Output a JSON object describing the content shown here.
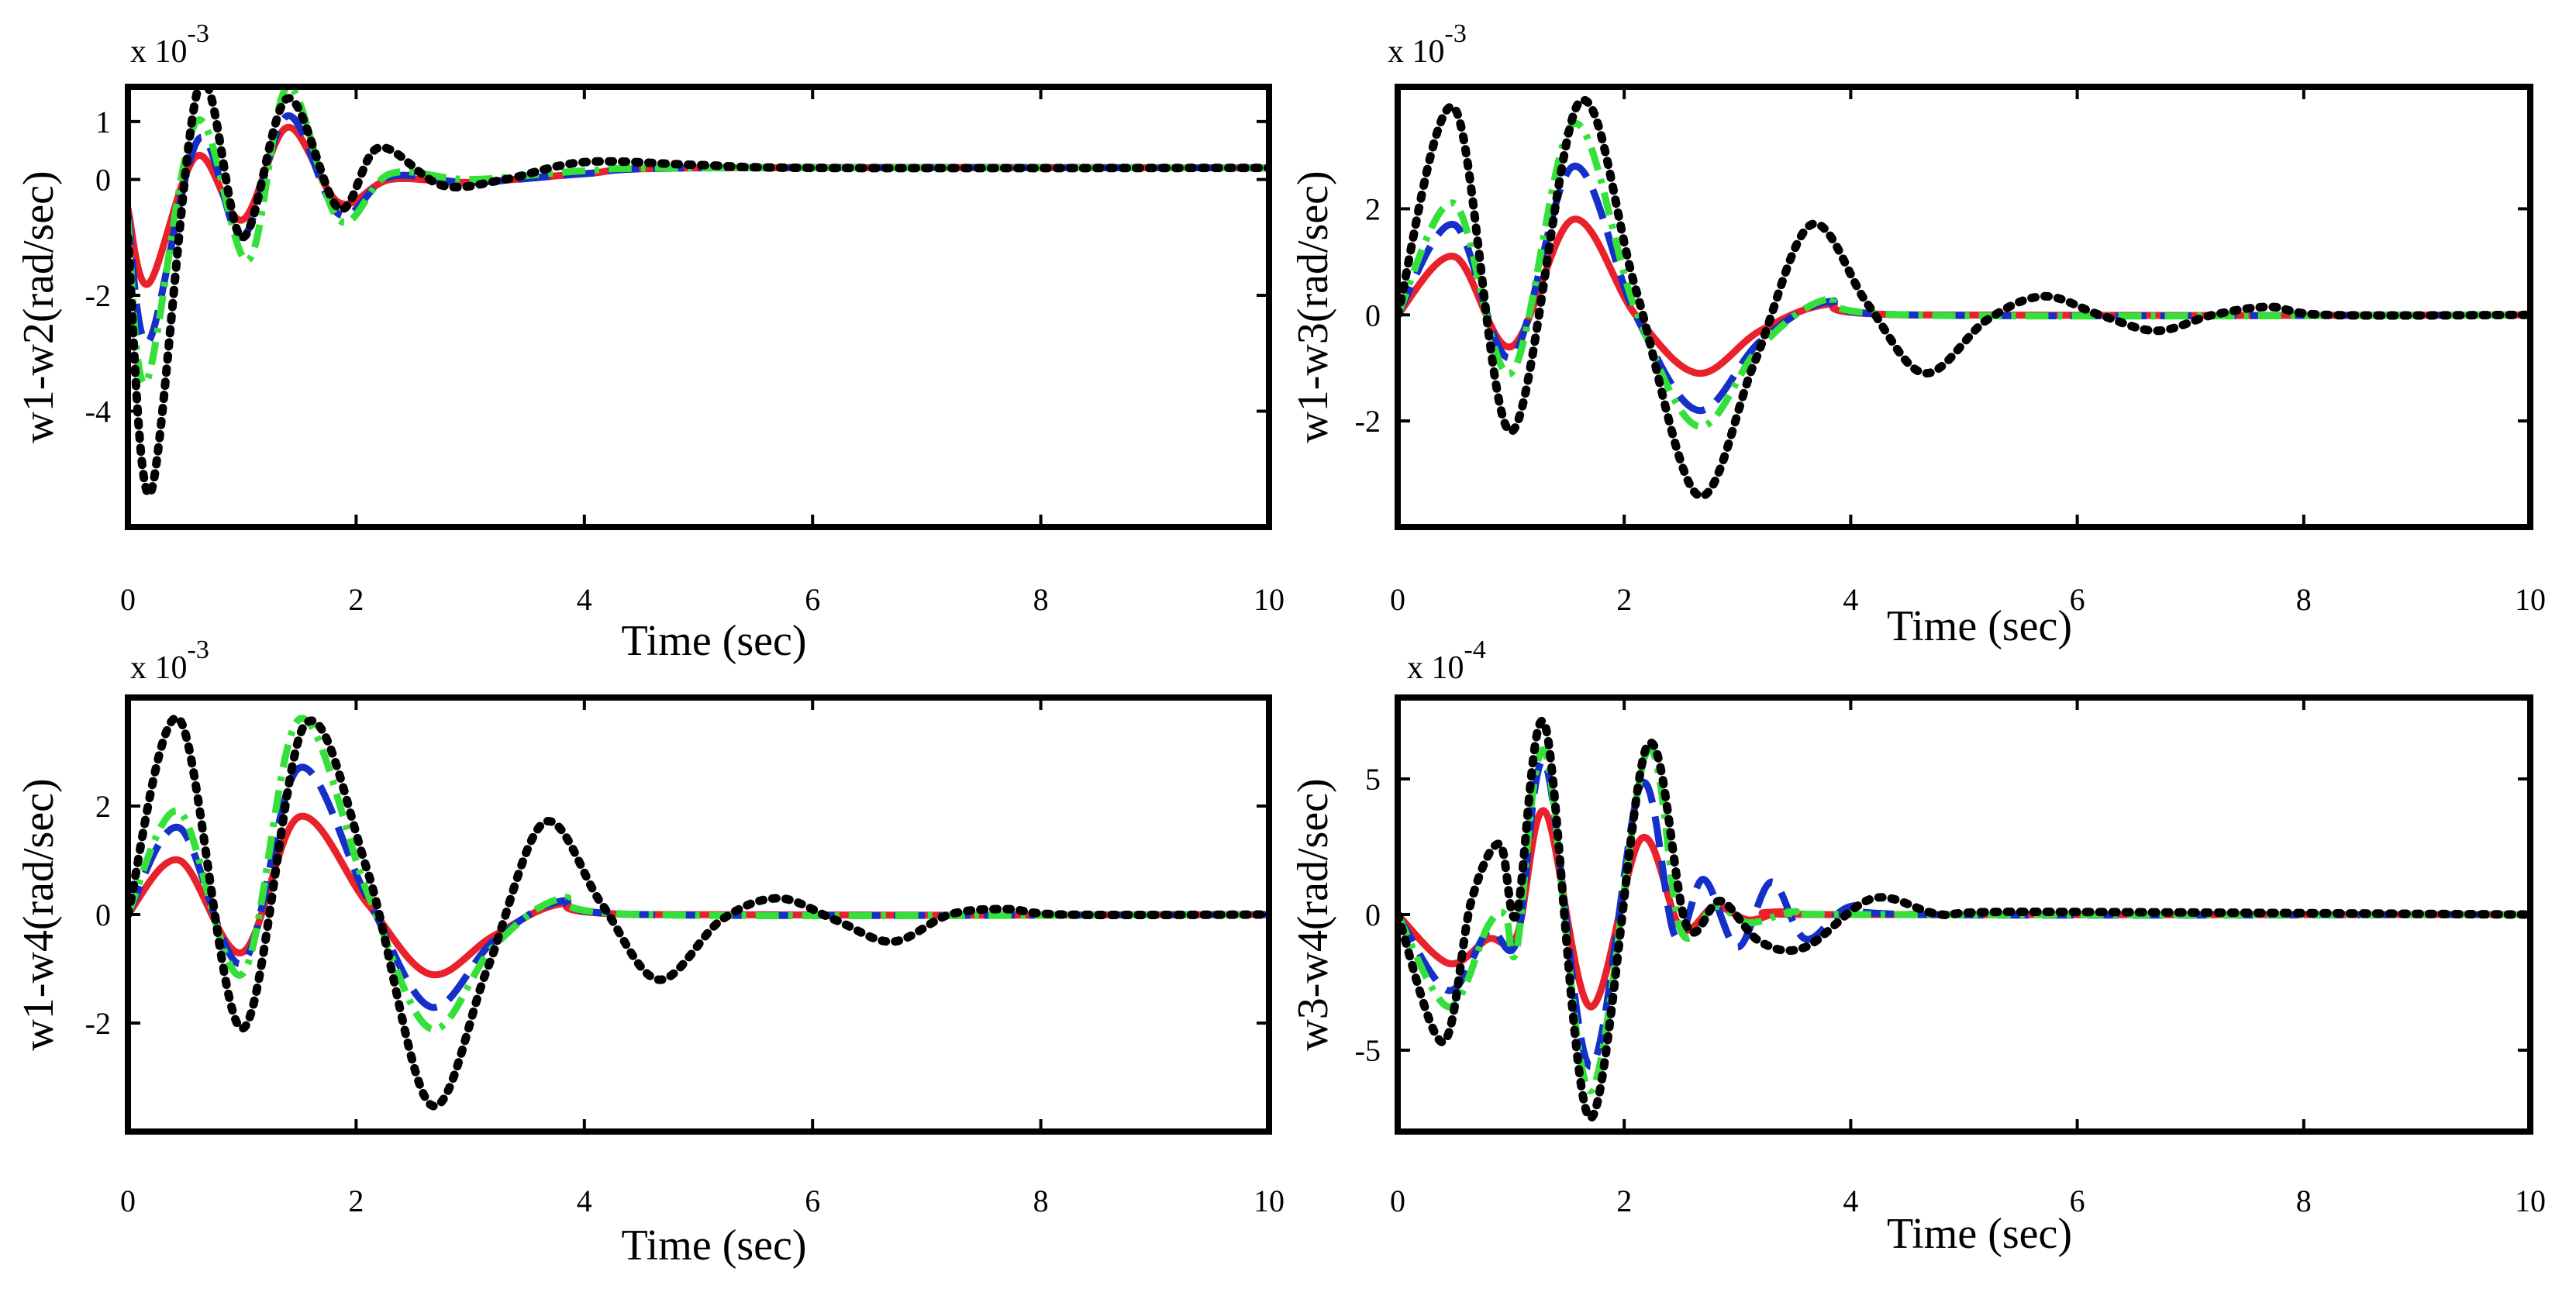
{
  "chart_data": [
    {
      "type": "line",
      "ylabel": "w1-w2(rad/sec)",
      "xlabel": "Time (sec)",
      "exponent_label": "x 10",
      "exponent_power": "-3",
      "xlim": [
        0,
        10
      ],
      "ylim": [
        -6,
        1.6
      ],
      "xticks": [
        "0",
        "2",
        "4",
        "6",
        "8",
        "10"
      ],
      "yticks": [
        {
          "v": 1,
          "label": "1"
        },
        {
          "v": 0,
          "label": "0"
        },
        {
          "v": -2,
          "label": "-2"
        },
        {
          "v": -4,
          "label": "-4"
        }
      ],
      "series": [
        {
          "name": "red",
          "color": "#e8212b",
          "dash": "solid",
          "x": [
            0,
            0.18,
            0.6,
            1.0,
            1.4,
            1.85,
            2.3,
            3.0,
            4.0,
            5.0,
            10
          ],
          "y": [
            -0.5,
            -1.8,
            0.4,
            -0.7,
            0.9,
            -0.4,
            0.0,
            -0.05,
            0.1,
            0.2,
            0.2
          ]
        },
        {
          "name": "blue",
          "color": "#1530c8",
          "dash": "long",
          "x": [
            0,
            0.18,
            0.62,
            1.0,
            1.4,
            1.85,
            2.3,
            3.0,
            4.0,
            5.0,
            10
          ],
          "y": [
            -0.6,
            -2.8,
            0.7,
            -1.0,
            1.1,
            -0.6,
            0.05,
            -0.05,
            0.1,
            0.2,
            0.2
          ]
        },
        {
          "name": "green",
          "color": "#35e03a",
          "dash": "dashdot",
          "x": [
            0,
            0.16,
            0.6,
            1.05,
            1.4,
            1.85,
            2.3,
            3.0,
            4.0,
            5.0,
            10
          ],
          "y": [
            -0.7,
            -3.5,
            1.0,
            -1.4,
            1.6,
            -0.7,
            0.1,
            0.0,
            0.15,
            0.2,
            0.2
          ]
        },
        {
          "name": "black",
          "color": "#000000",
          "dash": "dotted",
          "x": [
            0,
            0.2,
            0.62,
            1.0,
            1.4,
            1.85,
            2.2,
            2.75,
            3.3,
            4.0,
            5.0,
            6.0,
            10
          ],
          "y": [
            -1.0,
            -5.4,
            1.6,
            -1.0,
            1.4,
            -0.5,
            0.55,
            -0.1,
            0.0,
            0.3,
            0.25,
            0.2,
            0.2
          ]
        }
      ]
    },
    {
      "type": "line",
      "ylabel": "w1-w3(rad/sec)",
      "xlabel": "Time (sec)",
      "exponent_label": "x 10",
      "exponent_power": "-3",
      "xlim": [
        0,
        10
      ],
      "ylim": [
        -4,
        4.3
      ],
      "xticks": [
        "0",
        "2",
        "4",
        "6",
        "8",
        "10"
      ],
      "yticks": [
        {
          "v": 2,
          "label": "2"
        },
        {
          "v": 0,
          "label": "0"
        },
        {
          "v": -2,
          "label": "-2"
        }
      ],
      "series": [
        {
          "name": "red",
          "color": "#e8212b",
          "dash": "solid",
          "x": [
            0,
            0.5,
            1.0,
            1.55,
            2.1,
            2.65,
            3.2,
            3.8,
            4.5,
            10
          ],
          "y": [
            0,
            1.1,
            -0.6,
            1.8,
            0.0,
            -1.1,
            -0.3,
            0.2,
            0.0,
            0.0
          ]
        },
        {
          "name": "blue",
          "color": "#1530c8",
          "dash": "long",
          "x": [
            0,
            0.5,
            1.0,
            1.55,
            2.1,
            2.65,
            3.2,
            3.8,
            4.5,
            10
          ],
          "y": [
            0,
            1.7,
            -0.8,
            2.8,
            0.0,
            -1.8,
            -0.5,
            0.25,
            0.0,
            0.0
          ]
        },
        {
          "name": "green",
          "color": "#35e03a",
          "dash": "dashdot",
          "x": [
            0,
            0.5,
            1.0,
            1.55,
            2.1,
            2.65,
            3.2,
            3.8,
            4.5,
            10
          ],
          "y": [
            0,
            2.1,
            -1.1,
            3.6,
            0.1,
            -2.1,
            -0.6,
            0.3,
            0.0,
            0.0
          ]
        },
        {
          "name": "black",
          "color": "#000000",
          "dash": "dotted",
          "x": [
            0,
            0.5,
            1.0,
            1.6,
            2.1,
            2.65,
            3.15,
            3.65,
            4.15,
            4.65,
            5.2,
            5.7,
            6.2,
            6.7,
            7.2,
            7.7,
            8.2,
            10
          ],
          "y": [
            0,
            3.9,
            -2.2,
            4.0,
            0.5,
            -3.4,
            -0.9,
            1.7,
            0.2,
            -1.1,
            -0.1,
            0.35,
            0.0,
            -0.3,
            0.0,
            0.15,
            0.0,
            0.0
          ]
        }
      ]
    },
    {
      "type": "line",
      "ylabel": "w1-w4(rad/sec)",
      "xlabel": "Time (sec)",
      "exponent_label": "x 10",
      "exponent_power": "-3",
      "xlim": [
        0,
        10
      ],
      "ylim": [
        -4,
        4
      ],
      "xticks": [
        "0",
        "2",
        "4",
        "6",
        "8",
        "10"
      ],
      "yticks": [
        {
          "v": 2,
          "label": "2"
        },
        {
          "v": 0,
          "label": "0"
        },
        {
          "v": -2,
          "label": "-2"
        }
      ],
      "series": [
        {
          "name": "red",
          "color": "#e8212b",
          "dash": "solid",
          "x": [
            0,
            0.45,
            1.0,
            1.5,
            2.1,
            2.65,
            3.2,
            3.8,
            4.5,
            10
          ],
          "y": [
            0,
            1.0,
            -0.7,
            1.8,
            0.2,
            -1.1,
            -0.4,
            0.2,
            0.0,
            0.0
          ]
        },
        {
          "name": "blue",
          "color": "#1530c8",
          "dash": "long",
          "x": [
            0,
            0.45,
            1.0,
            1.5,
            2.1,
            2.65,
            3.2,
            3.8,
            4.5,
            10
          ],
          "y": [
            0,
            1.6,
            -0.9,
            2.7,
            0.3,
            -1.7,
            -0.5,
            0.25,
            0.0,
            0.0
          ]
        },
        {
          "name": "green",
          "color": "#35e03a",
          "dash": "dashdot",
          "x": [
            0,
            0.45,
            1.0,
            1.5,
            2.1,
            2.65,
            3.2,
            3.8,
            4.5,
            10
          ],
          "y": [
            0,
            1.9,
            -1.1,
            3.6,
            0.4,
            -2.1,
            -0.6,
            0.3,
            0.0,
            0.0
          ]
        },
        {
          "name": "black",
          "color": "#000000",
          "dash": "dotted",
          "x": [
            0,
            0.45,
            1.0,
            1.55,
            2.1,
            2.65,
            3.15,
            3.65,
            4.15,
            4.65,
            5.2,
            5.7,
            6.2,
            6.7,
            7.2,
            7.7,
            8.2,
            10
          ],
          "y": [
            0,
            3.6,
            -2.1,
            3.5,
            0.8,
            -3.5,
            -1.0,
            1.7,
            0.2,
            -1.2,
            -0.1,
            0.3,
            -0.1,
            -0.5,
            0.0,
            0.1,
            0.0,
            0.0
          ]
        }
      ]
    },
    {
      "type": "line",
      "ylabel": "w3-w4(rad/sec)",
      "xlabel": "Time (sec)",
      "exponent_label": "x 10",
      "exponent_power": "-4",
      "xlim": [
        0,
        10
      ],
      "ylim": [
        -8,
        8
      ],
      "xticks": [
        "0",
        "2",
        "4",
        "6",
        "8",
        "10"
      ],
      "yticks": [
        {
          "v": 5,
          "label": "5"
        },
        {
          "v": 0,
          "label": "0"
        },
        {
          "v": -5,
          "label": "-5"
        }
      ],
      "series": [
        {
          "name": "red",
          "color": "#e8212b",
          "dash": "solid",
          "x": [
            0,
            0.45,
            0.8,
            1.05,
            1.3,
            1.7,
            2.15,
            2.5,
            2.8,
            3.1,
            3.4,
            3.8,
            10
          ],
          "y": [
            0,
            -1.8,
            -0.9,
            -0.8,
            3.8,
            -3.4,
            2.8,
            -0.5,
            0.3,
            -0.2,
            0.1,
            0.0,
            0.0
          ]
        },
        {
          "name": "blue",
          "color": "#1530c8",
          "dash": "long",
          "x": [
            0,
            0.45,
            0.8,
            1.05,
            1.3,
            1.7,
            2.15,
            2.45,
            2.7,
            3.0,
            3.3,
            3.6,
            4.0,
            4.6,
            10
          ],
          "y": [
            0,
            -2.8,
            -0.6,
            -1.0,
            5.6,
            -5.6,
            4.8,
            -0.8,
            1.3,
            -1.2,
            1.2,
            -0.9,
            0.3,
            0.0,
            0.0
          ]
        },
        {
          "name": "green",
          "color": "#35e03a",
          "dash": "dashdot",
          "x": [
            0,
            0.45,
            0.8,
            0.95,
            1.05,
            1.3,
            1.7,
            2.2,
            2.5,
            2.8,
            3.1,
            3.5,
            4.0,
            10
          ],
          "y": [
            0,
            -3.4,
            -0.4,
            0.0,
            -1.3,
            6.0,
            -6.5,
            6.0,
            -0.6,
            0.3,
            -0.3,
            0.1,
            0.0,
            0.0
          ]
        },
        {
          "name": "black",
          "color": "#000000",
          "dash": "dotted",
          "x": [
            0,
            0.4,
            0.65,
            0.9,
            1.05,
            1.3,
            1.7,
            2.2,
            2.55,
            2.85,
            3.2,
            3.6,
            4.2,
            4.8,
            5.5,
            10
          ],
          "y": [
            0,
            -4.7,
            0.5,
            2.6,
            0.0,
            7.0,
            -7.5,
            6.2,
            -0.4,
            0.5,
            -1.0,
            -1.2,
            0.6,
            0.0,
            0.1,
            0.0
          ]
        }
      ]
    }
  ]
}
